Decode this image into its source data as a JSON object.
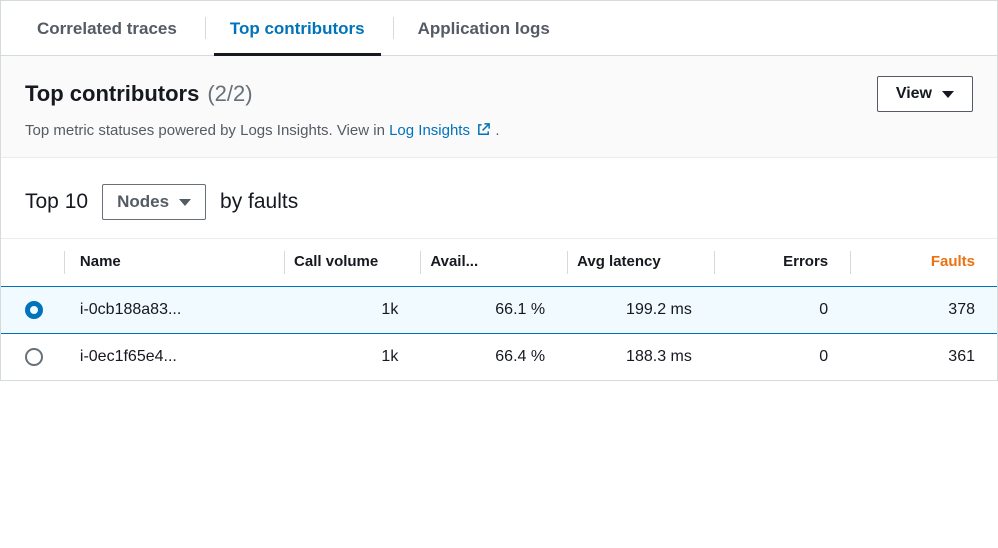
{
  "tabs": {
    "correlated": "Correlated traces",
    "contributors": "Top contributors",
    "logs": "Application logs",
    "active": "contributors"
  },
  "header": {
    "title": "Top contributors",
    "count": "(2/2)",
    "view_label": "View",
    "subtext_prefix": "Top metric statuses powered by Logs Insights. View in ",
    "link_label": "Log Insights",
    "subtext_suffix": " ."
  },
  "controls": {
    "prefix": "Top 10",
    "dropdown": "Nodes",
    "suffix": "by faults"
  },
  "columns": {
    "name": "Name",
    "call_volume": "Call volume",
    "availability": "Avail...",
    "avg_latency": "Avg latency",
    "errors": "Errors",
    "faults": "Faults"
  },
  "rows": [
    {
      "selected": true,
      "name": "i-0cb188a83...",
      "call_volume": "1k",
      "availability": "66.1 %",
      "avg_latency": "199.2 ms",
      "errors": "0",
      "faults": "378"
    },
    {
      "selected": false,
      "name": "i-0ec1f65e4...",
      "call_volume": "1k",
      "availability": "66.4 %",
      "avg_latency": "188.3 ms",
      "errors": "0",
      "faults": "361"
    }
  ],
  "colors": {
    "link": "#0073bb",
    "sort_active": "#ec7211",
    "selected_row_bg": "#f1faff"
  }
}
